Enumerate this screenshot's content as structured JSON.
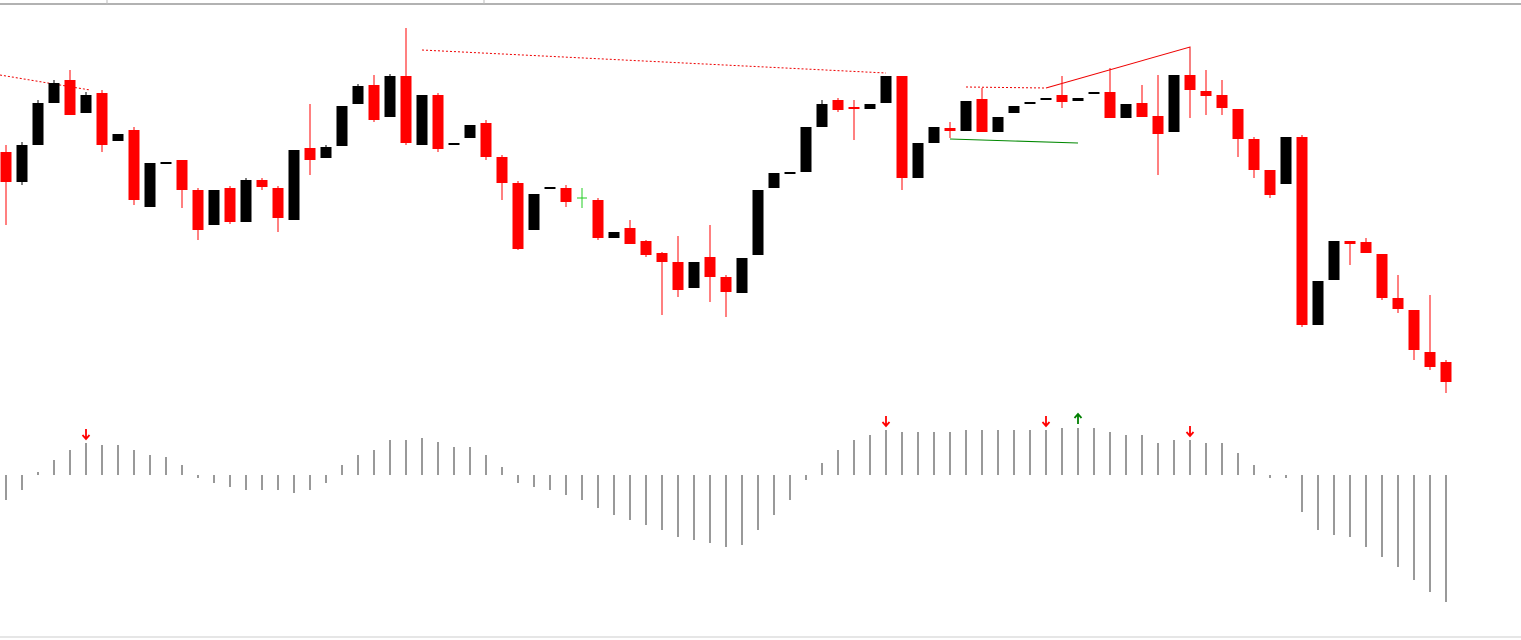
{
  "chart_data": [
    {
      "type": "candlestick",
      "ylim": [
        0,
        400
      ],
      "up_color": "#000000",
      "down_color": "#ff0000",
      "doji_color": "#22cc22",
      "open": [
        248,
        218,
        255,
        297,
        320,
        287,
        307,
        259,
        270,
        193,
        236,
        240,
        210,
        175,
        212,
        178,
        220,
        212,
        180,
        252,
        242,
        254,
        296,
        315,
        283,
        324,
        255,
        305,
        255,
        262,
        277,
        243,
        217,
        170,
        211,
        212,
        202,
        200,
        162,
        172,
        159,
        147,
        138,
        112,
        143,
        123,
        107,
        145,
        212,
        226,
        228,
        273,
        300,
        293,
        291,
        297,
        324,
        222,
        257,
        272,
        269,
        301,
        268,
        287,
        296,
        300,
        305,
        299,
        306,
        308,
        282,
        297,
        284,
        268,
        325,
        309,
        305,
        291,
        261,
        230,
        216,
        263,
        75,
        120,
        159,
        158,
        146,
        102,
        90,
        48,
        38
      ],
      "high": [
        255,
        258,
        300,
        320,
        330,
        308,
        310,
        266,
        273,
        237,
        238,
        240,
        212,
        210,
        214,
        222,
        222,
        214,
        250,
        296,
        255,
        294,
        316,
        325,
        326,
        372,
        305,
        307,
        257,
        275,
        280,
        245,
        219,
        206,
        213,
        215,
        212,
        202,
        168,
        180,
        160,
        148,
        164,
        138,
        175,
        125,
        142,
        210,
        227,
        228,
        273,
        300,
        302,
        300,
        296,
        324,
        324,
        257,
        273,
        278,
        299,
        312,
        283,
        294,
        298,
        302,
        324,
        302,
        308,
        332,
        296,
        315,
        325,
        325,
        325,
        330,
        320,
        291,
        263,
        230,
        263,
        265,
        119,
        159,
        159,
        162,
        146,
        125,
        90,
        105,
        40
      ],
      "low": [
        175,
        215,
        255,
        297,
        285,
        287,
        248,
        259,
        195,
        193,
        236,
        192,
        160,
        175,
        176,
        178,
        210,
        168,
        180,
        225,
        242,
        254,
        296,
        278,
        283,
        255,
        255,
        248,
        255,
        262,
        240,
        200,
        150,
        170,
        211,
        193,
        192,
        160,
        162,
        156,
        143,
        85,
        103,
        112,
        98,
        83,
        107,
        145,
        212,
        226,
        228,
        273,
        288,
        260,
        291,
        297,
        210,
        222,
        257,
        262,
        269,
        268,
        268,
        287,
        296,
        300,
        292,
        299,
        306,
        282,
        282,
        283,
        225,
        268,
        282,
        285,
        285,
        243,
        222,
        202,
        216,
        73,
        75,
        120,
        135,
        147,
        100,
        87,
        40,
        30,
        7
      ],
      "close": [
        218,
        255,
        297,
        317,
        285,
        305,
        255,
        266,
        200,
        237,
        238,
        210,
        170,
        210,
        178,
        220,
        213,
        182,
        250,
        240,
        253,
        294,
        314,
        280,
        324,
        257,
        305,
        251,
        257,
        275,
        243,
        217,
        151,
        206,
        213,
        198,
        202,
        162,
        168,
        156,
        145,
        138,
        110,
        138,
        123,
        108,
        142,
        210,
        227,
        228,
        273,
        296,
        290,
        291,
        296,
        324,
        222,
        257,
        273,
        269,
        299,
        268,
        283,
        294,
        298,
        302,
        298,
        302,
        308,
        282,
        296,
        283,
        266,
        325,
        310,
        304,
        292,
        261,
        230,
        205,
        263,
        75,
        119,
        159,
        156,
        147,
        102,
        91,
        50,
        33,
        18
      ]
    },
    {
      "type": "histogram-oscillator",
      "ylim": [
        -165,
        65
      ],
      "color": "#999999",
      "values": [
        -25,
        -15,
        3,
        15,
        25,
        32,
        30,
        30,
        25,
        20,
        18,
        10,
        -3,
        -8,
        -12,
        -15,
        -15,
        -15,
        -18,
        -15,
        -8,
        10,
        20,
        25,
        35,
        35,
        37,
        33,
        28,
        28,
        20,
        8,
        -8,
        -12,
        -15,
        -20,
        -25,
        -33,
        -40,
        -45,
        -50,
        -55,
        -62,
        -65,
        -68,
        -72,
        -70,
        -55,
        -40,
        -25,
        -5,
        12,
        25,
        35,
        40,
        45,
        43,
        43,
        43,
        43,
        45,
        45,
        45,
        45,
        45,
        45,
        47,
        47,
        47,
        43,
        40,
        40,
        32,
        35,
        35,
        32,
        32,
        22,
        10,
        -3,
        -3,
        -37,
        -55,
        -60,
        -62,
        -72,
        -82,
        -92,
        -105,
        -117,
        -127
      ],
      "arrows": [
        {
          "index": 5,
          "direction": "down",
          "color": "#ff0000"
        },
        {
          "index": 55,
          "direction": "down",
          "color": "#ff0000"
        },
        {
          "index": 65,
          "direction": "down",
          "color": "#ff0000"
        },
        {
          "index": 67,
          "direction": "up",
          "color": "#008000"
        },
        {
          "index": 74,
          "direction": "down",
          "color": "#ff0000"
        }
      ]
    }
  ]
}
